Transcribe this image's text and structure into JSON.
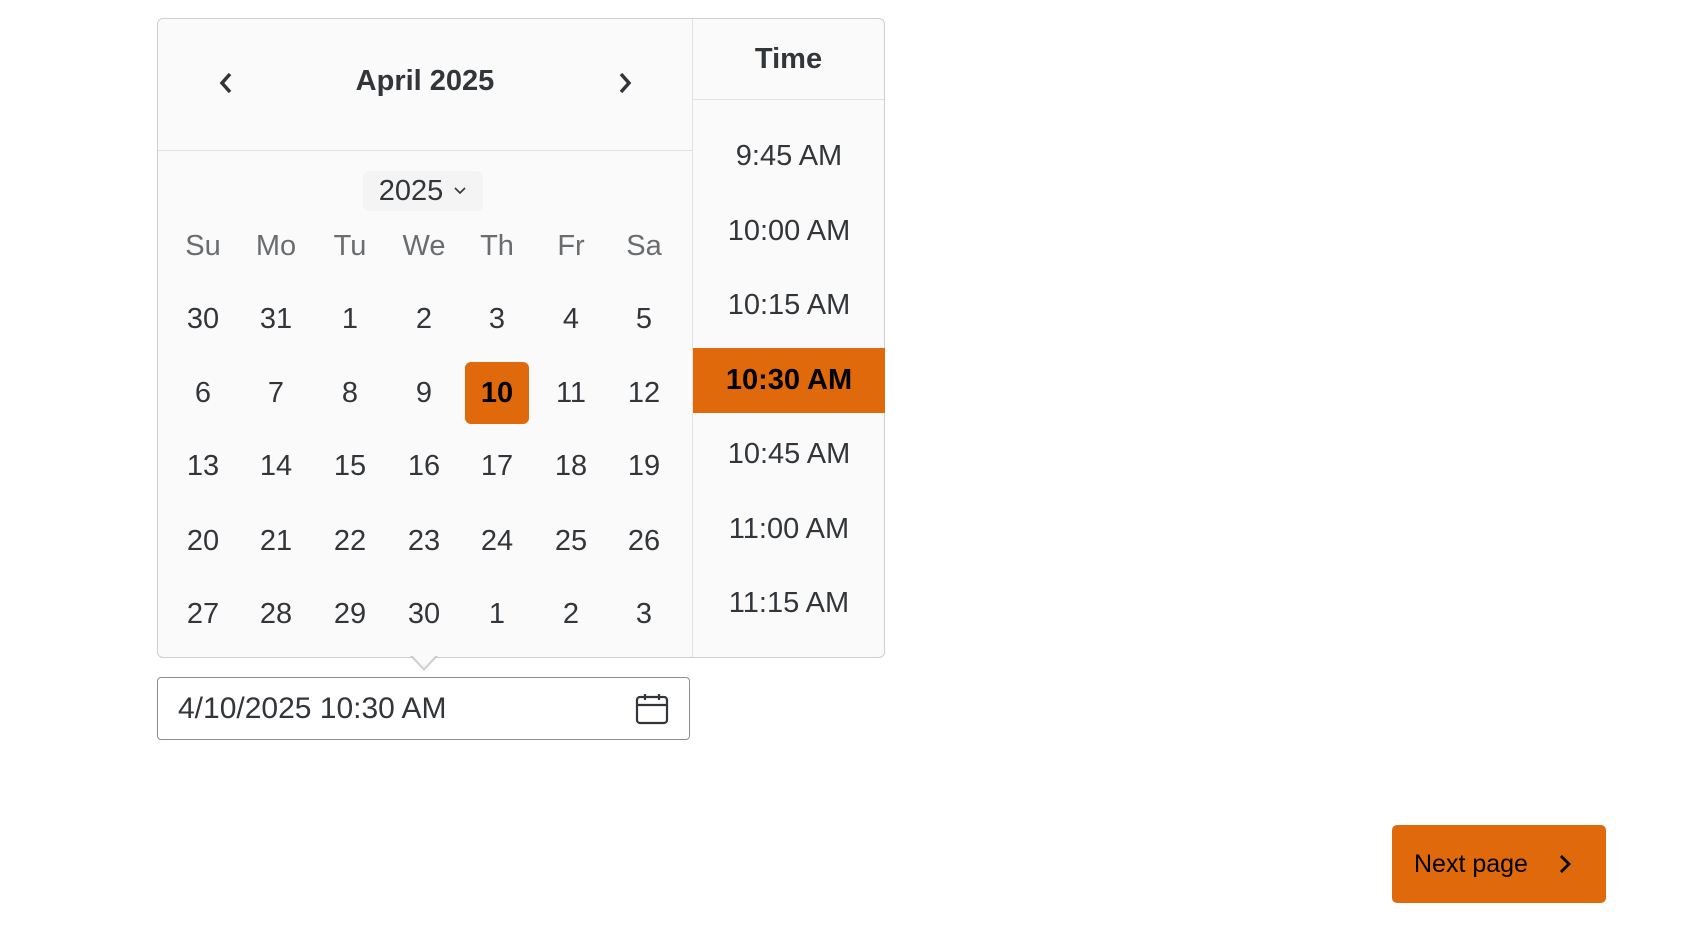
{
  "calendar": {
    "month_title": "April 2025",
    "year": "2025",
    "weekdays": [
      "Su",
      "Mo",
      "Tu",
      "We",
      "Th",
      "Fr",
      "Sa"
    ],
    "weeks": [
      [
        "30",
        "31",
        "1",
        "2",
        "3",
        "4",
        "5"
      ],
      [
        "6",
        "7",
        "8",
        "9",
        "10",
        "11",
        "12"
      ],
      [
        "13",
        "14",
        "15",
        "16",
        "17",
        "18",
        "19"
      ],
      [
        "20",
        "21",
        "22",
        "23",
        "24",
        "25",
        "26"
      ],
      [
        "27",
        "28",
        "29",
        "30",
        "1",
        "2",
        "3"
      ]
    ],
    "selected_day": "10"
  },
  "time": {
    "header": "Time",
    "slots": [
      "9:45 AM",
      "10:00 AM",
      "10:15 AM",
      "10:30 AM",
      "10:45 AM",
      "11:00 AM",
      "11:15 AM"
    ],
    "selected": "10:30 AM"
  },
  "input": {
    "value": "4/10/2025 10:30 AM"
  },
  "next_button": {
    "label": "Next page"
  },
  "colors": {
    "accent": "#e0690b"
  }
}
